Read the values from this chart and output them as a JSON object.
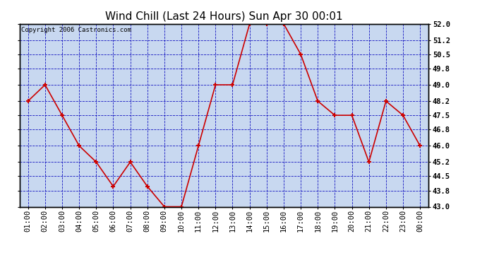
{
  "title": "Wind Chill (Last 24 Hours) Sun Apr 30 00:01",
  "copyright": "Copyright 2006 Castronics.com",
  "x_labels": [
    "01:00",
    "02:00",
    "03:00",
    "04:00",
    "05:00",
    "06:00",
    "07:00",
    "08:00",
    "09:00",
    "10:00",
    "11:00",
    "12:00",
    "13:00",
    "14:00",
    "15:00",
    "16:00",
    "17:00",
    "18:00",
    "19:00",
    "20:00",
    "21:00",
    "22:00",
    "23:00",
    "00:00"
  ],
  "y_values": [
    48.2,
    49.0,
    47.5,
    46.0,
    45.2,
    44.0,
    45.2,
    44.0,
    43.0,
    43.0,
    46.0,
    49.0,
    49.0,
    52.0,
    52.0,
    52.0,
    50.5,
    48.2,
    47.5,
    47.5,
    45.2,
    48.2,
    47.5,
    46.0,
    46.0
  ],
  "ylim": [
    43.0,
    52.0
  ],
  "yticks": [
    43.0,
    43.8,
    44.5,
    45.2,
    46.0,
    46.8,
    47.5,
    48.2,
    49.0,
    49.8,
    50.5,
    51.2,
    52.0
  ],
  "line_color": "#cc0000",
  "marker_color": "#cc0000",
  "bg_color": "#c8d8f0",
  "fig_bg": "#ffffff",
  "grid_color": "#0000bb",
  "title_color": "#000000",
  "border_color": "#000000",
  "copyright_color": "#000000",
  "title_fontsize": 11,
  "copyright_fontsize": 6.5,
  "tick_fontsize": 7.5
}
